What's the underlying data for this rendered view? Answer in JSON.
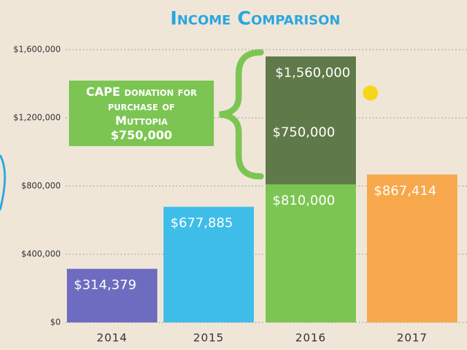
{
  "chart_data": {
    "type": "bar",
    "title": "Income Comparison",
    "categories": [
      "2014",
      "2015",
      "2016",
      "2017"
    ],
    "series": [
      {
        "colors": [
          "#6e6cc0",
          "#3fbde9",
          "#7cc552",
          "#f8a84c"
        ],
        "values": [
          314379,
          677885,
          810000,
          867414
        ],
        "value_labels": [
          "$314,379",
          "$677,885",
          "$810,000",
          "$867,414"
        ]
      },
      {
        "color": "#5f7a48",
        "values": [
          null,
          null,
          750000,
          null
        ],
        "value_labels": [
          null,
          null,
          "$750,000",
          null
        ]
      }
    ],
    "stacked": true,
    "total_labels": [
      null,
      null,
      "$1,560,000",
      null
    ],
    "annotation": {
      "lines": [
        "CAPE donation for",
        "purchase of",
        "Muttopia",
        "$750,000"
      ],
      "color": "#7cc552"
    },
    "ylim": [
      0,
      1600000
    ],
    "yticks": [
      {
        "value": 0,
        "label": "$0"
      },
      {
        "value": 400000,
        "label": "$400,000"
      },
      {
        "value": 800000,
        "label": "$800,000"
      },
      {
        "value": 1200000,
        "label": "$1,200,000"
      },
      {
        "value": 1600000,
        "label": "$1,600,000"
      }
    ],
    "grid": true
  }
}
